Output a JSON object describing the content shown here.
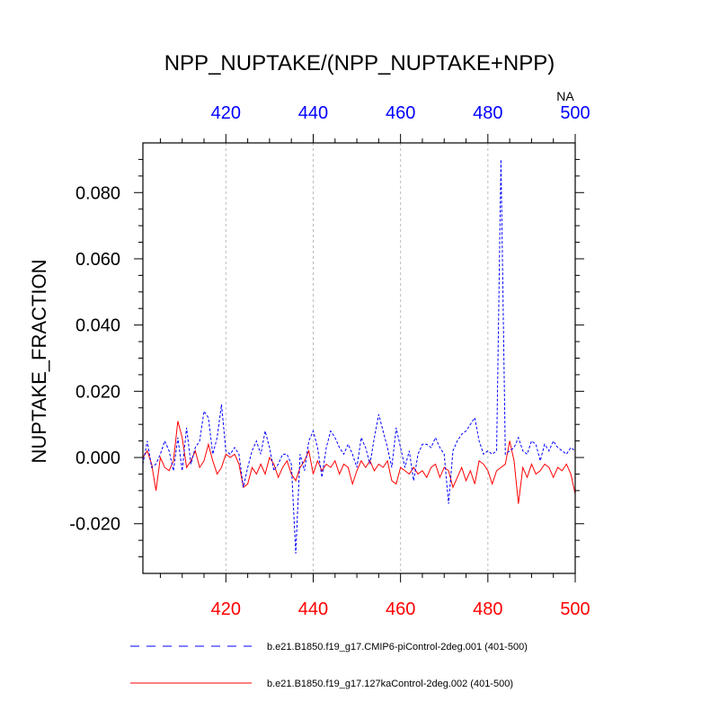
{
  "chart_data": {
    "type": "line",
    "title": "NPP_NUPTAKE/(NPP_NUPTAKE+NPP)",
    "ylabel": "NUPTAKE_FRACTION",
    "top_axis_extra_label": "NA",
    "xlim": [
      401,
      500
    ],
    "ylim": [
      -0.035,
      0.095
    ],
    "x_ticks": [
      420,
      440,
      460,
      480,
      500
    ],
    "x_tick_labels": [
      "420",
      "440",
      "460",
      "480",
      "500"
    ],
    "y_ticks": [
      -0.02,
      0.0,
      0.02,
      0.04,
      0.06,
      0.08
    ],
    "y_tick_labels": [
      "-0.020",
      "0.000",
      "0.020",
      "0.040",
      "0.060",
      "0.080"
    ],
    "vertical_grid": true,
    "top_axis_color": "#0000ff",
    "bottom_axis_color": "#ff0000",
    "legend_position": "bottom",
    "series": [
      {
        "name": "b.e21.B1850.f19_g17.CMIP6-piControl-2deg.001 (401-500)",
        "color": "#0000ff",
        "dash": "dashed",
        "x_start": 401,
        "values": [
          -0.002,
          0.005,
          -0.003,
          -0.002,
          0.001,
          0.005,
          0.002,
          -0.004,
          0.006,
          -0.004,
          0.009,
          -0.002,
          0.003,
          0.005,
          0.014,
          0.012,
          0.001,
          0.006,
          0.016,
          0.002,
          0.001,
          0.003,
          0.001,
          -0.009,
          -0.003,
          0.002,
          0.005,
          0.001,
          0.008,
          0.003,
          -0.004,
          -0.002,
          0.001,
          0.001,
          -0.002,
          -0.029,
          0.001,
          -0.004,
          0.005,
          0.008,
          0.003,
          -0.006,
          0.003,
          0.008,
          0.006,
          0.003,
          0.001,
          0.004,
          0.001,
          -0.003,
          0.006,
          0.003,
          -0.002,
          0.006,
          0.013,
          0.008,
          0.003,
          -0.003,
          0.009,
          0.003,
          -0.003,
          0.002,
          -0.007,
          0.001,
          0.004,
          0.004,
          0.003,
          0.006,
          0.003,
          0.001,
          -0.014,
          0.002,
          0.005,
          0.007,
          0.008,
          0.01,
          0.012,
          0.005,
          0.001,
          0.002,
          0.001,
          0.002,
          0.09,
          0.001,
          0.002,
          0.003,
          0.006,
          0.002,
          0.001,
          0.005,
          0.004,
          -0.001,
          0.004,
          0.002,
          0.005,
          0.003,
          0.002,
          0.001,
          0.003,
          0.002
        ]
      },
      {
        "name": "b.e21.B1850.f19_g17.127kaControl-2deg.002 (401-500)",
        "color": "#ff0000",
        "dash": "solid",
        "x_start": 401,
        "values": [
          0.0,
          0.002,
          -0.002,
          -0.01,
          0.0,
          -0.003,
          -0.004,
          -0.001,
          0.011,
          0.006,
          -0.003,
          -0.001,
          0.002,
          -0.003,
          -0.001,
          0.004,
          -0.001,
          -0.005,
          -0.003,
          0.001,
          0.0,
          0.001,
          -0.002,
          -0.009,
          -0.008,
          -0.003,
          -0.005,
          -0.002,
          -0.005,
          0.0,
          -0.002,
          -0.006,
          -0.003,
          -0.001,
          -0.005,
          -0.007,
          -0.003,
          -0.001,
          0.002,
          -0.005,
          -0.001,
          -0.004,
          -0.002,
          -0.003,
          -0.001,
          -0.005,
          -0.002,
          -0.003,
          -0.008,
          -0.004,
          -0.001,
          -0.003,
          -0.001,
          -0.004,
          -0.002,
          -0.003,
          -0.001,
          -0.007,
          -0.008,
          -0.003,
          -0.004,
          -0.005,
          -0.003,
          -0.005,
          -0.004,
          -0.006,
          -0.003,
          -0.002,
          -0.006,
          -0.003,
          -0.004,
          -0.009,
          -0.006,
          -0.003,
          -0.007,
          -0.004,
          -0.008,
          -0.001,
          -0.002,
          -0.004,
          -0.008,
          -0.004,
          -0.003,
          -0.002,
          0.005,
          -0.001,
          -0.014,
          -0.003,
          -0.006,
          -0.002,
          -0.005,
          -0.004,
          -0.002,
          -0.003,
          -0.006,
          -0.003,
          -0.004,
          -0.002,
          -0.005,
          -0.011
        ]
      }
    ]
  }
}
